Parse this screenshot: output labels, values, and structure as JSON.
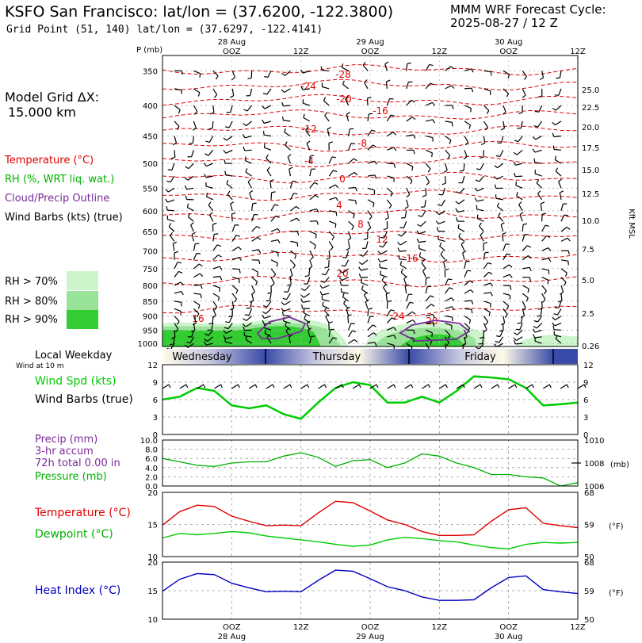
{
  "header": {
    "title": "KSFO San Francisco:  lat/lon = (37.6200, -122.3800)",
    "subtitle": "Grid Point (51, 140) lat/lon = (37.6297, -122.4141)",
    "cycle_line1": "MMM WRF Forecast Cycle:",
    "cycle_line2": "2025-08-27 / 12  Z"
  },
  "left_panel": {
    "grid_dx_line1": "Model Grid ΔX:",
    "grid_dx_line2": "15.000 km",
    "legend_temperature": "Temperature (°C)",
    "legend_rh": "RH (%, WRT liq. wat.)",
    "legend_cloud": "Cloud/Precip Outline",
    "legend_wind": "Wind Barbs (kts) (true)",
    "rh_70": "RH > 70%",
    "rh_80": "RH > 80%",
    "rh_90": "RH > 90%",
    "local_weekday": "Local Weekday",
    "wind_at": "Wind at 10 m",
    "wind_spd": "Wind Spd (kts)",
    "wind_barbs": "Wind Barbs (true)",
    "precip1": "Precip (mm)",
    "precip2": "3-hr accum",
    "precip3": "72h total 0.00 in",
    "pressure": "Pressure (mb)",
    "temp": "Temperature (°C)",
    "dew": "Dewpoint (°C)",
    "heat": "Heat Index (°C)"
  },
  "colors": {
    "temperature": "#e00000",
    "rh_line": "#00b000",
    "cloud": "#7a2a9a",
    "wind": "#00cc00",
    "heat": "#0000c0",
    "rh70": "#ccf5cc",
    "rh80": "#99e399",
    "rh90": "#33cc33"
  },
  "chart_data": [
    {
      "type": "heatmap",
      "name": "time-height cross section",
      "ylabel": "P (mb)",
      "y2label": "Kft MSL",
      "x_top_ticks": [
        "28 Aug OOZ",
        "12Z",
        "29 Aug OOZ",
        "12Z",
        "30 Aug OOZ",
        "12Z"
      ],
      "pressure_levels": [
        350,
        400,
        450,
        500,
        550,
        600,
        650,
        700,
        750,
        800,
        850,
        900,
        950,
        1000
      ],
      "height_kft": [
        25.0,
        22.5,
        20.0,
        17.5,
        15.0,
        12.5,
        10.0,
        7.5,
        5.0,
        2.5,
        0.26
      ],
      "temperature_contours_c": [
        -28,
        -24,
        -20,
        -16,
        -12,
        -8,
        -4,
        0,
        4,
        8,
        12,
        16,
        20,
        24
      ],
      "temperature_labels": [
        "-28",
        "-24",
        "-20",
        "-16",
        "-12",
        "-8",
        "-4",
        "0",
        "4",
        "8",
        "12",
        "16",
        "20",
        "24",
        "16",
        "20"
      ],
      "weekdays": [
        "Wednesday",
        "Thursday",
        "Friday"
      ]
    },
    {
      "type": "line",
      "name": "10 m wind speed",
      "ylim": [
        0,
        12
      ],
      "yticks": [
        0,
        3,
        6,
        9,
        12
      ],
      "x_hours": [
        0,
        3,
        6,
        9,
        12,
        15,
        18,
        21,
        24,
        27,
        30,
        33,
        36,
        39,
        42,
        45,
        48,
        51,
        54,
        57,
        60,
        63,
        66,
        69,
        72
      ],
      "values": [
        6.0,
        6.5,
        8.0,
        7.5,
        5.0,
        4.5,
        5.0,
        3.5,
        2.7,
        5.5,
        8.0,
        9.0,
        8.5,
        5.5,
        5.5,
        6.5,
        5.5,
        7.5,
        10.0,
        9.8,
        9.5,
        8.0,
        5.0,
        5.2,
        5.5
      ]
    },
    {
      "type": "line",
      "name": "precip and pressure",
      "ylim_precip": [
        0,
        10.0
      ],
      "yticks_precip": [
        "0.0",
        "2.0",
        "4.0",
        "6.0",
        "8.0",
        "10.0"
      ],
      "ylim_pressure": [
        1006,
        1010
      ],
      "yticks_pressure": [
        1006,
        1008,
        1010
      ],
      "y2label": "(mb)",
      "precip_mm": [
        0,
        0,
        0,
        0,
        0,
        0,
        0,
        0,
        0,
        0,
        0,
        0,
        0,
        0,
        0,
        0,
        0,
        0,
        0,
        0,
        0,
        0,
        0,
        0,
        0
      ],
      "pressure_mb": [
        1008.4,
        1008.1,
        1007.8,
        1007.7,
        1008.0,
        1008.1,
        1008.1,
        1008.6,
        1008.9,
        1008.5,
        1007.7,
        1008.2,
        1008.3,
        1007.6,
        1008.0,
        1008.8,
        1008.6,
        1008.0,
        1007.6,
        1007.0,
        1007.0,
        1006.8,
        1006.7,
        1006.0,
        1006.3
      ]
    },
    {
      "type": "line",
      "name": "temperature and dewpoint",
      "ylim": [
        10,
        20
      ],
      "yticks": [
        10,
        15,
        20
      ],
      "y2ticks_f": [
        50,
        59,
        68
      ],
      "y2label": "(°F)",
      "temperature_c": [
        14.9,
        17.0,
        18.0,
        17.8,
        16.3,
        15.5,
        14.8,
        14.9,
        14.8,
        16.8,
        18.6,
        18.4,
        17.1,
        15.7,
        15.0,
        13.9,
        13.3,
        13.3,
        13.4,
        15.5,
        17.3,
        17.6,
        15.2,
        14.8,
        14.5
      ],
      "dewpoint_c": [
        12.9,
        13.6,
        13.4,
        13.6,
        13.9,
        13.7,
        13.2,
        12.9,
        12.6,
        12.3,
        11.9,
        11.6,
        11.8,
        12.6,
        13.0,
        12.8,
        12.5,
        12.3,
        11.8,
        11.4,
        11.2,
        11.9,
        12.2,
        12.1,
        12.2
      ]
    },
    {
      "type": "line",
      "name": "heat index",
      "ylim": [
        10,
        20
      ],
      "yticks": [
        10,
        15,
        20
      ],
      "y2ticks_f": [
        50,
        59,
        68
      ],
      "y2label": "(°F)",
      "x_bottom_ticks": [
        "OOZ",
        "12Z",
        "OOZ",
        "12Z",
        "OOZ",
        "12Z"
      ],
      "x_bottom_dates": [
        "28 Aug",
        "29 Aug",
        "30 Aug"
      ],
      "heat_index_c": [
        14.9,
        17.0,
        18.0,
        17.8,
        16.3,
        15.5,
        14.8,
        14.9,
        14.8,
        16.8,
        18.6,
        18.4,
        17.1,
        15.7,
        15.0,
        13.9,
        13.3,
        13.3,
        13.4,
        15.5,
        17.3,
        17.6,
        15.2,
        14.8,
        14.5
      ]
    }
  ]
}
